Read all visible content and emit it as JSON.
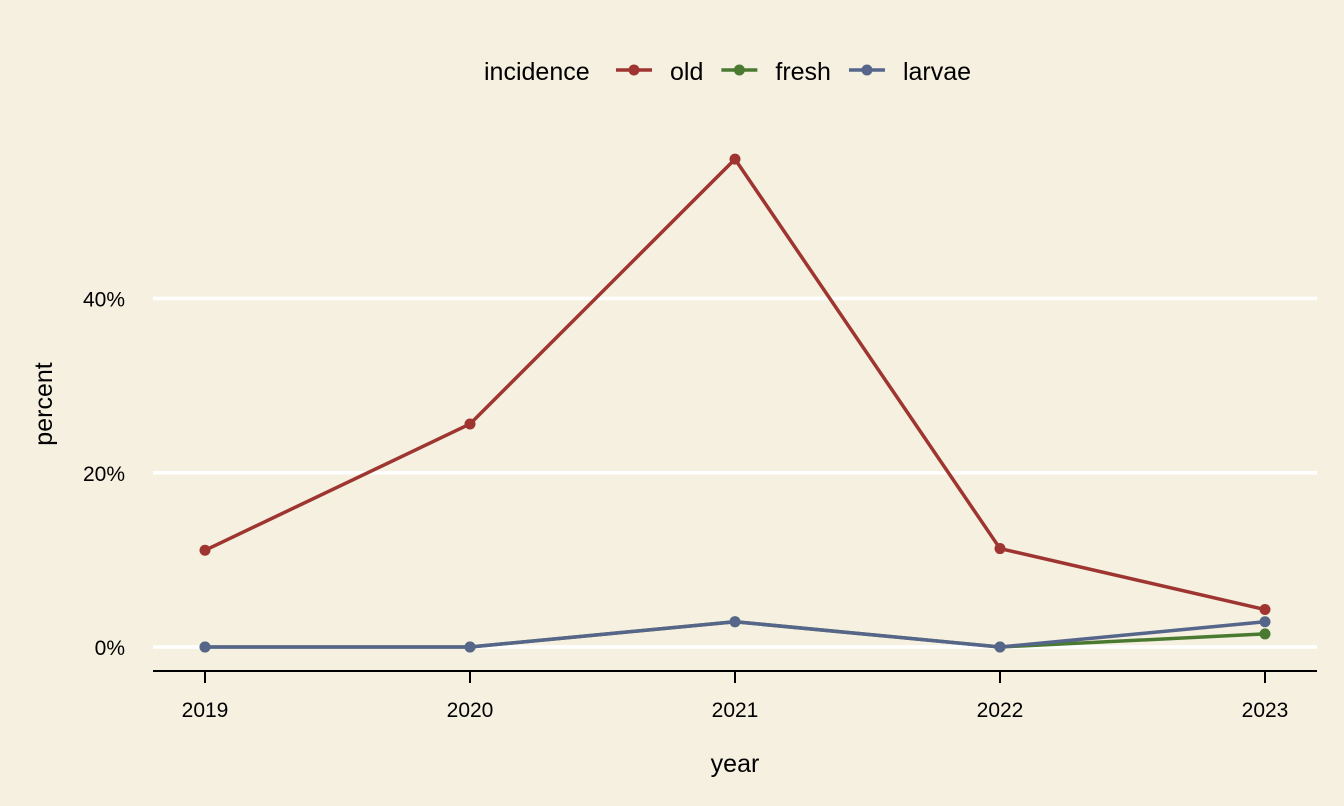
{
  "chart_data": {
    "type": "line",
    "x": [
      "2019",
      "2020",
      "2021",
      "2022",
      "2023"
    ],
    "series": [
      {
        "name": "old",
        "color": "#9e3530",
        "values": [
          11.1,
          25.6,
          56.0,
          11.3,
          4.3
        ]
      },
      {
        "name": "fresh",
        "color": "#4a7a32",
        "values": [
          0,
          0,
          2.9,
          0,
          1.5
        ]
      },
      {
        "name": "larvae",
        "color": "#56658a",
        "values": [
          0,
          0,
          2.9,
          0,
          2.9
        ]
      }
    ],
    "xlabel": "year",
    "ylabel": "percent",
    "yticks": [
      0,
      20,
      40
    ],
    "ytick_labels": [
      "0%",
      "20%",
      "40%"
    ],
    "ylim": [
      -2.8,
      60
    ],
    "legend_title": "incidence",
    "legend_position": "top",
    "grid": "horizontal-major",
    "background": "#f5f0e0",
    "gridline_color": "#ffffff"
  }
}
